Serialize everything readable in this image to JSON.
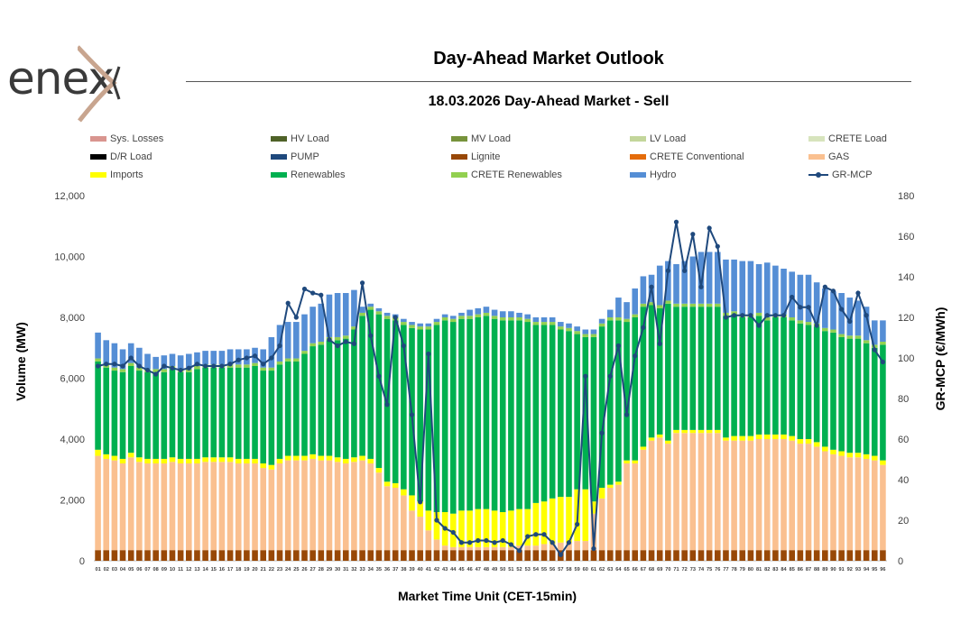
{
  "header": {
    "logo_text": "enex",
    "title": "Day-Ahead Market Outlook",
    "subtitle": "18.03.2026  Day-Ahead Market - Sell"
  },
  "colors": {
    "sys_losses": "#d9958f",
    "hv_load": "#4f6228",
    "mv_load": "#77933c",
    "lv_load": "#c3d69b",
    "crete_load": "#d7e4bd",
    "dr_load": "#000000",
    "pump": "#1f497d",
    "lignite": "#984807",
    "crete_conventional": "#e46c0a",
    "gas": "#fac090",
    "imports": "#ffff00",
    "renewables": "#00b050",
    "crete_renewables": "#92d050",
    "hydro": "#558ed5",
    "mcp": "#1f497d"
  },
  "chart_data": {
    "type": "bar+line",
    "xlabel": "Market Time Unit (CET-15min)",
    "ylabel": "Volume (MW)",
    "y2label": "GR-MCP (€/MWh)",
    "ylim": [
      0,
      12000
    ],
    "y2lim": [
      0,
      180
    ],
    "yticks": [
      "0",
      "2,000",
      "4,000",
      "6,000",
      "8,000",
      "10,000",
      "12,000"
    ],
    "y2ticks": [
      "0",
      "20",
      "40",
      "60",
      "80",
      "100",
      "120",
      "140",
      "160",
      "180"
    ],
    "categories": [
      "01",
      "02",
      "03",
      "04",
      "05",
      "06",
      "07",
      "08",
      "09",
      "10",
      "11",
      "12",
      "13",
      "14",
      "15",
      "16",
      "17",
      "18",
      "19",
      "20",
      "21",
      "22",
      "23",
      "24",
      "25",
      "26",
      "27",
      "28",
      "29",
      "30",
      "31",
      "32",
      "33",
      "34",
      "35",
      "36",
      "37",
      "38",
      "39",
      "40",
      "41",
      "42",
      "43",
      "44",
      "45",
      "46",
      "47",
      "48",
      "49",
      "50",
      "51",
      "52",
      "53",
      "54",
      "55",
      "56",
      "57",
      "58",
      "59",
      "60",
      "61",
      "62",
      "63",
      "64",
      "65",
      "66",
      "67",
      "68",
      "69",
      "70",
      "71",
      "72",
      "73",
      "74",
      "75",
      "76",
      "77",
      "78",
      "79",
      "80",
      "81",
      "82",
      "83",
      "84",
      "85",
      "86",
      "87",
      "88",
      "89",
      "90",
      "91",
      "92",
      "93",
      "94",
      "95",
      "96"
    ],
    "series": [
      {
        "name": "Sys. Losses",
        "key": "sys_losses",
        "kind": "legend-only"
      },
      {
        "name": "HV Load",
        "key": "hv_load",
        "kind": "legend-only"
      },
      {
        "name": "MV Load",
        "key": "mv_load",
        "kind": "legend-only"
      },
      {
        "name": "LV Load",
        "key": "lv_load",
        "kind": "legend-only"
      },
      {
        "name": "CRETE Load",
        "key": "crete_load",
        "kind": "legend-only"
      },
      {
        "name": "D/R Load",
        "key": "dr_load",
        "kind": "legend-only"
      },
      {
        "name": "PUMP",
        "key": "pump",
        "kind": "legend-only"
      },
      {
        "name": "Lignite",
        "key": "lignite",
        "kind": "bar",
        "values": [
          350,
          350,
          350,
          350,
          350,
          350,
          350,
          350,
          350,
          350,
          350,
          350,
          350,
          350,
          350,
          350,
          350,
          350,
          350,
          350,
          350,
          350,
          350,
          350,
          350,
          350,
          350,
          350,
          350,
          350,
          350,
          350,
          350,
          350,
          350,
          350,
          350,
          350,
          350,
          350,
          350,
          350,
          350,
          350,
          350,
          350,
          350,
          350,
          350,
          350,
          350,
          350,
          350,
          350,
          350,
          350,
          350,
          350,
          350,
          350,
          350,
          350,
          350,
          350,
          350,
          350,
          350,
          350,
          350,
          350,
          350,
          350,
          350,
          350,
          350,
          350,
          350,
          350,
          350,
          350,
          350,
          350,
          350,
          350,
          350,
          350,
          350,
          350,
          350,
          350,
          350,
          350,
          350,
          350,
          350,
          350
        ]
      },
      {
        "name": "CRETE Conventional",
        "key": "crete_conventional",
        "kind": "legend-only"
      },
      {
        "name": "GAS",
        "key": "gas",
        "kind": "bar",
        "values": [
          3100,
          3000,
          2950,
          2850,
          3050,
          2900,
          2850,
          2850,
          2850,
          2900,
          2850,
          2850,
          2850,
          2900,
          2900,
          2900,
          2900,
          2850,
          2850,
          2850,
          2700,
          2650,
          2850,
          2950,
          2950,
          2950,
          3000,
          2950,
          2950,
          2900,
          2850,
          2900,
          2950,
          2850,
          2550,
          2100,
          2050,
          1800,
          1300,
          1100,
          650,
          350,
          150,
          100,
          100,
          100,
          100,
          100,
          100,
          100,
          100,
          150,
          150,
          150,
          200,
          200,
          250,
          250,
          300,
          300,
          1200,
          1700,
          2050,
          2150,
          2850,
          2850,
          3300,
          3600,
          3700,
          3500,
          3850,
          3850,
          3850,
          3850,
          3850,
          3850,
          3600,
          3600,
          3600,
          3600,
          3650,
          3650,
          3650,
          3650,
          3600,
          3500,
          3500,
          3400,
          3250,
          3150,
          3100,
          3050,
          3050,
          3000,
          2950,
          2800
        ]
      },
      {
        "name": "Imports",
        "key": "imports",
        "kind": "bar",
        "values": [
          200,
          150,
          150,
          150,
          150,
          150,
          150,
          150,
          150,
          150,
          150,
          150,
          150,
          150,
          150,
          150,
          150,
          150,
          150,
          150,
          150,
          150,
          150,
          150,
          150,
          150,
          150,
          150,
          150,
          150,
          150,
          150,
          150,
          150,
          150,
          150,
          150,
          200,
          500,
          500,
          650,
          900,
          1100,
          1100,
          1200,
          1200,
          1250,
          1250,
          1200,
          1150,
          1200,
          1200,
          1200,
          1400,
          1400,
          1500,
          1500,
          1500,
          1700,
          1700,
          400,
          350,
          100,
          100,
          100,
          100,
          100,
          100,
          100,
          100,
          100,
          100,
          100,
          100,
          100,
          100,
          100,
          150,
          150,
          150,
          150,
          150,
          150,
          150,
          150,
          150,
          150,
          150,
          150,
          150,
          150,
          150,
          150,
          150,
          150,
          150
        ]
      },
      {
        "name": "Renewables",
        "key": "renewables",
        "kind": "bar",
        "values": [
          2900,
          2850,
          2800,
          2850,
          2850,
          2850,
          2850,
          2850,
          2850,
          2900,
          2850,
          2850,
          2950,
          2950,
          2950,
          2950,
          2950,
          3000,
          3000,
          3050,
          3050,
          3100,
          3100,
          3100,
          3100,
          3350,
          3550,
          3650,
          3800,
          3850,
          3950,
          4200,
          4600,
          4900,
          5050,
          5350,
          5350,
          5400,
          5500,
          5650,
          5950,
          6150,
          6300,
          6300,
          6300,
          6300,
          6300,
          6350,
          6300,
          6300,
          6250,
          6200,
          6150,
          5850,
          5800,
          5700,
          5500,
          5450,
          5100,
          5000,
          5400,
          5300,
          5400,
          5300,
          4550,
          4700,
          4600,
          4350,
          4150,
          4500,
          4050,
          4050,
          4050,
          4050,
          4050,
          4050,
          4000,
          4000,
          3900,
          3900,
          3900,
          3750,
          3850,
          3850,
          3800,
          3800,
          3750,
          3800,
          3800,
          3850,
          3750,
          3750,
          3750,
          3650,
          3550,
          3800
        ]
      },
      {
        "name": "CRETE Renewables",
        "key": "crete_renewables",
        "kind": "bar",
        "values": [
          100,
          100,
          100,
          100,
          100,
          100,
          100,
          100,
          100,
          100,
          100,
          100,
          100,
          100,
          100,
          100,
          100,
          100,
          100,
          100,
          100,
          100,
          100,
          100,
          100,
          100,
          100,
          100,
          100,
          100,
          100,
          100,
          100,
          100,
          100,
          100,
          100,
          100,
          100,
          100,
          100,
          100,
          100,
          100,
          100,
          100,
          100,
          100,
          100,
          100,
          100,
          100,
          100,
          100,
          100,
          100,
          100,
          100,
          100,
          100,
          100,
          100,
          100,
          100,
          100,
          100,
          100,
          100,
          100,
          100,
          100,
          100,
          100,
          100,
          100,
          100,
          100,
          100,
          100,
          100,
          100,
          100,
          100,
          100,
          100,
          100,
          100,
          100,
          100,
          100,
          100,
          100,
          100,
          100,
          100,
          100
        ]
      },
      {
        "name": "Hydro",
        "key": "hydro",
        "kind": "bar",
        "values": [
          850,
          800,
          800,
          650,
          650,
          650,
          500,
          400,
          450,
          400,
          450,
          500,
          450,
          450,
          450,
          450,
          500,
          500,
          500,
          500,
          600,
          1000,
          1200,
          1200,
          1200,
          1200,
          1200,
          1250,
          1400,
          1450,
          1400,
          1200,
          200,
          100,
          100,
          100,
          100,
          100,
          100,
          100,
          100,
          100,
          100,
          100,
          100,
          200,
          200,
          200,
          200,
          200,
          200,
          150,
          150,
          150,
          150,
          150,
          150,
          150,
          150,
          150,
          150,
          150,
          250,
          650,
          550,
          850,
          900,
          900,
          1300,
          1300,
          1300,
          1400,
          1550,
          1700,
          1700,
          1700,
          1750,
          1700,
          1750,
          1750,
          1600,
          1800,
          1600,
          1500,
          1500,
          1500,
          1550,
          1350,
          1300,
          1250,
          1350,
          1250,
          1150,
          1100,
          800,
          700
        ]
      },
      {
        "name": "GR-MCP",
        "key": "mcp",
        "kind": "line",
        "values": [
          96,
          97,
          97,
          96,
          100,
          96,
          94,
          92,
          96,
          95,
          94,
          95,
          97,
          96,
          96,
          96,
          97,
          99,
          100,
          101,
          97,
          100,
          106,
          127,
          120,
          134,
          132,
          131,
          109,
          106,
          108,
          107,
          137,
          111,
          91,
          77,
          120,
          106,
          72,
          29,
          102,
          20,
          16,
          14,
          9,
          9,
          10,
          10,
          9,
          10,
          8,
          5,
          12,
          13,
          13,
          9,
          3,
          9,
          18,
          91,
          6,
          63,
          91,
          106,
          72,
          101,
          115,
          135,
          107,
          143,
          167,
          143,
          161,
          135,
          164,
          155,
          120,
          121,
          121,
          121,
          116,
          121,
          121,
          121,
          130,
          125,
          125,
          116,
          135,
          133,
          124,
          118,
          132,
          121,
          104,
          98
        ]
      }
    ]
  }
}
